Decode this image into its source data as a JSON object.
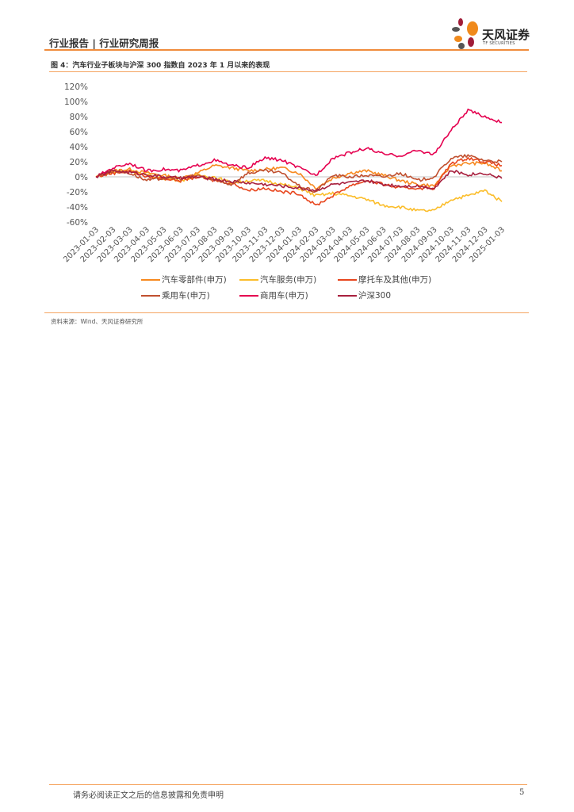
{
  "header": {
    "title": "行业报告 | 行业研究周报",
    "logo_text": "天风证券",
    "logo_sub": "TF SECURITIES"
  },
  "figure": {
    "caption": "图 4：汽车行业子板块与沪深 300 指数自 2023 年 1 月以来的表现",
    "source": "资料来源：Wind、天风证券研究所"
  },
  "footer": {
    "disclaimer": "请务必阅读正文之后的信息披露和免责申明",
    "page": "5"
  },
  "chart_data": {
    "type": "line",
    "title": "",
    "xlabel": "",
    "ylabel": "",
    "ylim": [
      -60,
      120
    ],
    "yticks": [
      "120%",
      "100%",
      "80%",
      "60%",
      "40%",
      "20%",
      "0%",
      "-20%",
      "-40%",
      "-60%"
    ],
    "yticks_values": [
      120,
      100,
      80,
      60,
      40,
      20,
      0,
      -20,
      -40,
      -60
    ],
    "x": [
      "2023-01-03",
      "2023-02-03",
      "2023-03-03",
      "2023-04-03",
      "2023-05-03",
      "2023-06-03",
      "2023-07-03",
      "2023-08-03",
      "2023-09-03",
      "2023-10-03",
      "2023-11-03",
      "2023-12-03",
      "2024-01-03",
      "2024-02-03",
      "2024-03-03",
      "2024-04-03",
      "2024-05-03",
      "2024-06-03",
      "2024-07-03",
      "2024-08-03",
      "2024-09-03",
      "2024-10-03",
      "2024-11-03",
      "2024-12-03",
      "2025-01-03"
    ],
    "legend_position": "bottom",
    "series": [
      {
        "name": "汽车零部件(申万)",
        "color": "#f7891f",
        "values": [
          0,
          8,
          10,
          5,
          2,
          -2,
          5,
          15,
          12,
          8,
          10,
          12,
          5,
          -15,
          -2,
          5,
          8,
          2,
          -5,
          -10,
          -12,
          15,
          18,
          18,
          8
        ]
      },
      {
        "name": "汽车服务(申万)",
        "color": "#fbbd2a",
        "values": [
          0,
          6,
          8,
          2,
          -2,
          -5,
          2,
          0,
          -8,
          -5,
          -5,
          -10,
          -15,
          -25,
          -22,
          -25,
          -30,
          -38,
          -40,
          -45,
          -45,
          -30,
          -25,
          -18,
          -33
        ]
      },
      {
        "name": "摩托车及其他(申万)",
        "color": "#e8461e",
        "values": [
          0,
          5,
          8,
          0,
          -2,
          -5,
          0,
          -5,
          -8,
          -18,
          -15,
          -20,
          -22,
          -38,
          -25,
          -12,
          -5,
          -10,
          -15,
          -15,
          -15,
          18,
          25,
          20,
          15
        ]
      },
      {
        "name": "乘用车(申万)",
        "color": "#c0502f",
        "values": [
          0,
          8,
          5,
          -5,
          -2,
          -2,
          2,
          -5,
          -10,
          5,
          8,
          5,
          -12,
          -20,
          2,
          0,
          2,
          0,
          5,
          -5,
          0,
          25,
          28,
          22,
          20
        ]
      },
      {
        "name": "商用车(申万)",
        "color": "#e5004f",
        "values": [
          0,
          12,
          18,
          8,
          10,
          8,
          15,
          22,
          15,
          12,
          25,
          22,
          12,
          2,
          25,
          32,
          38,
          30,
          28,
          35,
          30,
          62,
          88,
          80,
          72
        ]
      },
      {
        "name": "沪深300",
        "color": "#a8203e",
        "values": [
          0,
          8,
          6,
          3,
          0,
          -2,
          0,
          -3,
          -6,
          -8,
          -10,
          -12,
          -15,
          -18,
          -10,
          -8,
          -5,
          -10,
          -12,
          -12,
          -15,
          8,
          3,
          5,
          -2
        ]
      }
    ]
  }
}
